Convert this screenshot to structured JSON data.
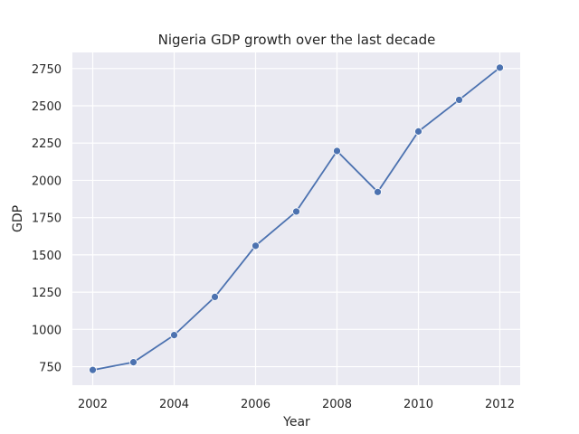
{
  "chart_data": {
    "type": "line",
    "title": "Nigeria GDP growth over the last decade",
    "xlabel": "Year",
    "ylabel": "GDP",
    "x": [
      2002,
      2003,
      2004,
      2005,
      2006,
      2007,
      2008,
      2009,
      2010,
      2011,
      2012
    ],
    "series": [
      {
        "name": "",
        "values": [
          728,
          780,
          962,
          1218,
          1561,
          1791,
          2197,
          1922,
          2328,
          2540,
          2756
        ]
      }
    ],
    "xlim": [
      2001.5,
      2012.5
    ],
    "ylim": [
      626,
      2858
    ],
    "xticks": [
      2002,
      2004,
      2006,
      2008,
      2010,
      2012
    ],
    "yticks": [
      750,
      1000,
      1250,
      1500,
      1750,
      2000,
      2250,
      2500,
      2750
    ],
    "grid": true,
    "legend": "none",
    "colors": {
      "background": "#eaeaf2",
      "line": "#4c72b0",
      "grid": "#ffffff",
      "text": "#262626"
    }
  }
}
